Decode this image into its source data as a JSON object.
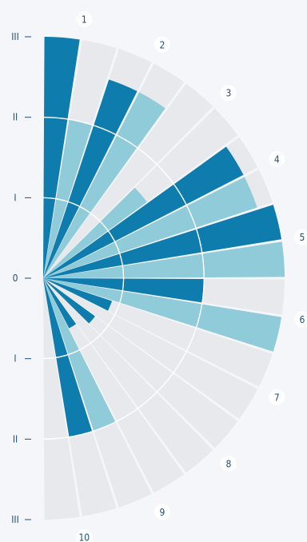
{
  "chart_data": {
    "type": "radial-bar",
    "axis_ticks": [
      "III",
      "II",
      "I",
      "0",
      "I",
      "II",
      "III"
    ],
    "categories": [
      "1",
      "2",
      "3",
      "4",
      "5",
      "6",
      "7",
      "8",
      "9",
      "10"
    ],
    "series": [
      {
        "values": [
          3.0,
          2.6,
          0,
          2.8,
          3.0,
          2.0,
          0.9,
          0.8,
          0.7,
          2.0
        ]
      },
      {
        "values": [
          2.0,
          2.6,
          1.6,
          2.8,
          3.0,
          3.0,
          0,
          0,
          2.0,
          0
        ]
      }
    ],
    "range": [
      0,
      3
    ],
    "colors": {
      "series_1": "#0e7cad",
      "series_2": "#8fcbd9",
      "track": "#e8e9ec",
      "ring": "#ffffff",
      "background": "#f5f6f9"
    }
  }
}
